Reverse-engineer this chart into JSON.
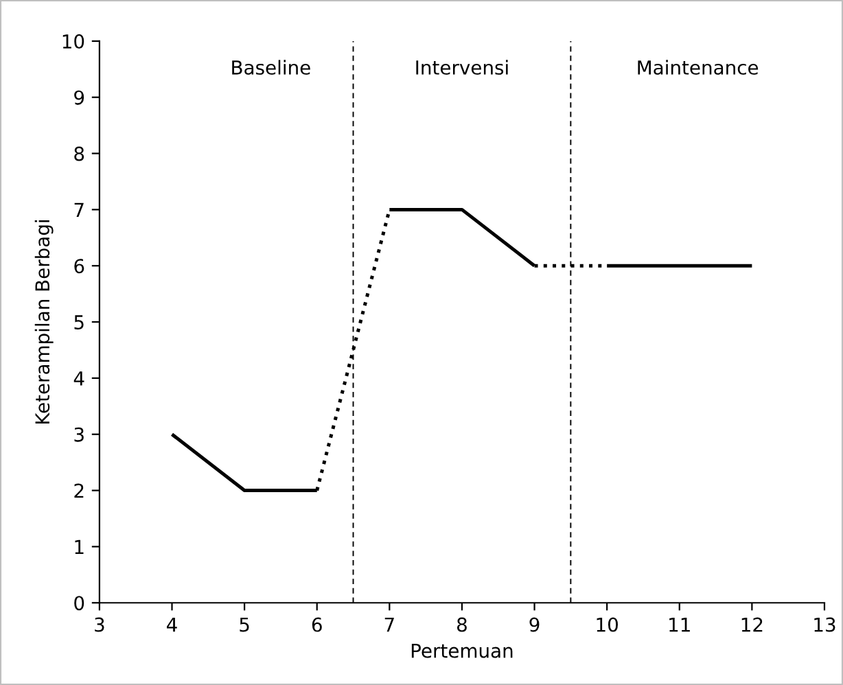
{
  "chart_data": {
    "type": "line",
    "xlabel": "Pertemuan",
    "ylabel": "Keterampilan Berbagi",
    "xlim": [
      3,
      13
    ],
    "xticks": [
      3,
      4,
      5,
      6,
      7,
      8,
      9,
      10,
      11,
      12,
      13
    ],
    "ylim": [
      0,
      10
    ],
    "yticks": [
      0,
      1,
      2,
      3,
      4,
      5,
      6,
      7,
      8,
      9,
      10
    ],
    "grid": false,
    "legend": false,
    "marker": "none",
    "series": [
      {
        "color": "#000000",
        "x": [
          4,
          5,
          6
        ],
        "values": [
          3,
          2,
          2
        ],
        "line_style": "solid"
      },
      {
        "color": "#000000",
        "x": [
          6,
          7
        ],
        "values": [
          2,
          7
        ],
        "line_style": "dotted"
      },
      {
        "color": "#000000",
        "x": [
          7,
          8,
          9
        ],
        "values": [
          7,
          7,
          6
        ],
        "line_style": "solid"
      },
      {
        "color": "#000000",
        "x": [
          9,
          10
        ],
        "values": [
          6,
          6
        ],
        "line_style": "dotted"
      },
      {
        "color": "#000000",
        "x": [
          10,
          11,
          12
        ],
        "values": [
          6,
          6,
          6
        ],
        "line_style": "solid"
      }
    ],
    "ref_lines": [
      {
        "axis": "x",
        "value": 6.5,
        "color": "#000000",
        "line_style": "dashed"
      },
      {
        "axis": "x",
        "value": 9.5,
        "color": "#000000",
        "line_style": "dashed"
      }
    ],
    "annotations": [
      "Baseline",
      "Intervensi",
      "Maintenance"
    ]
  }
}
